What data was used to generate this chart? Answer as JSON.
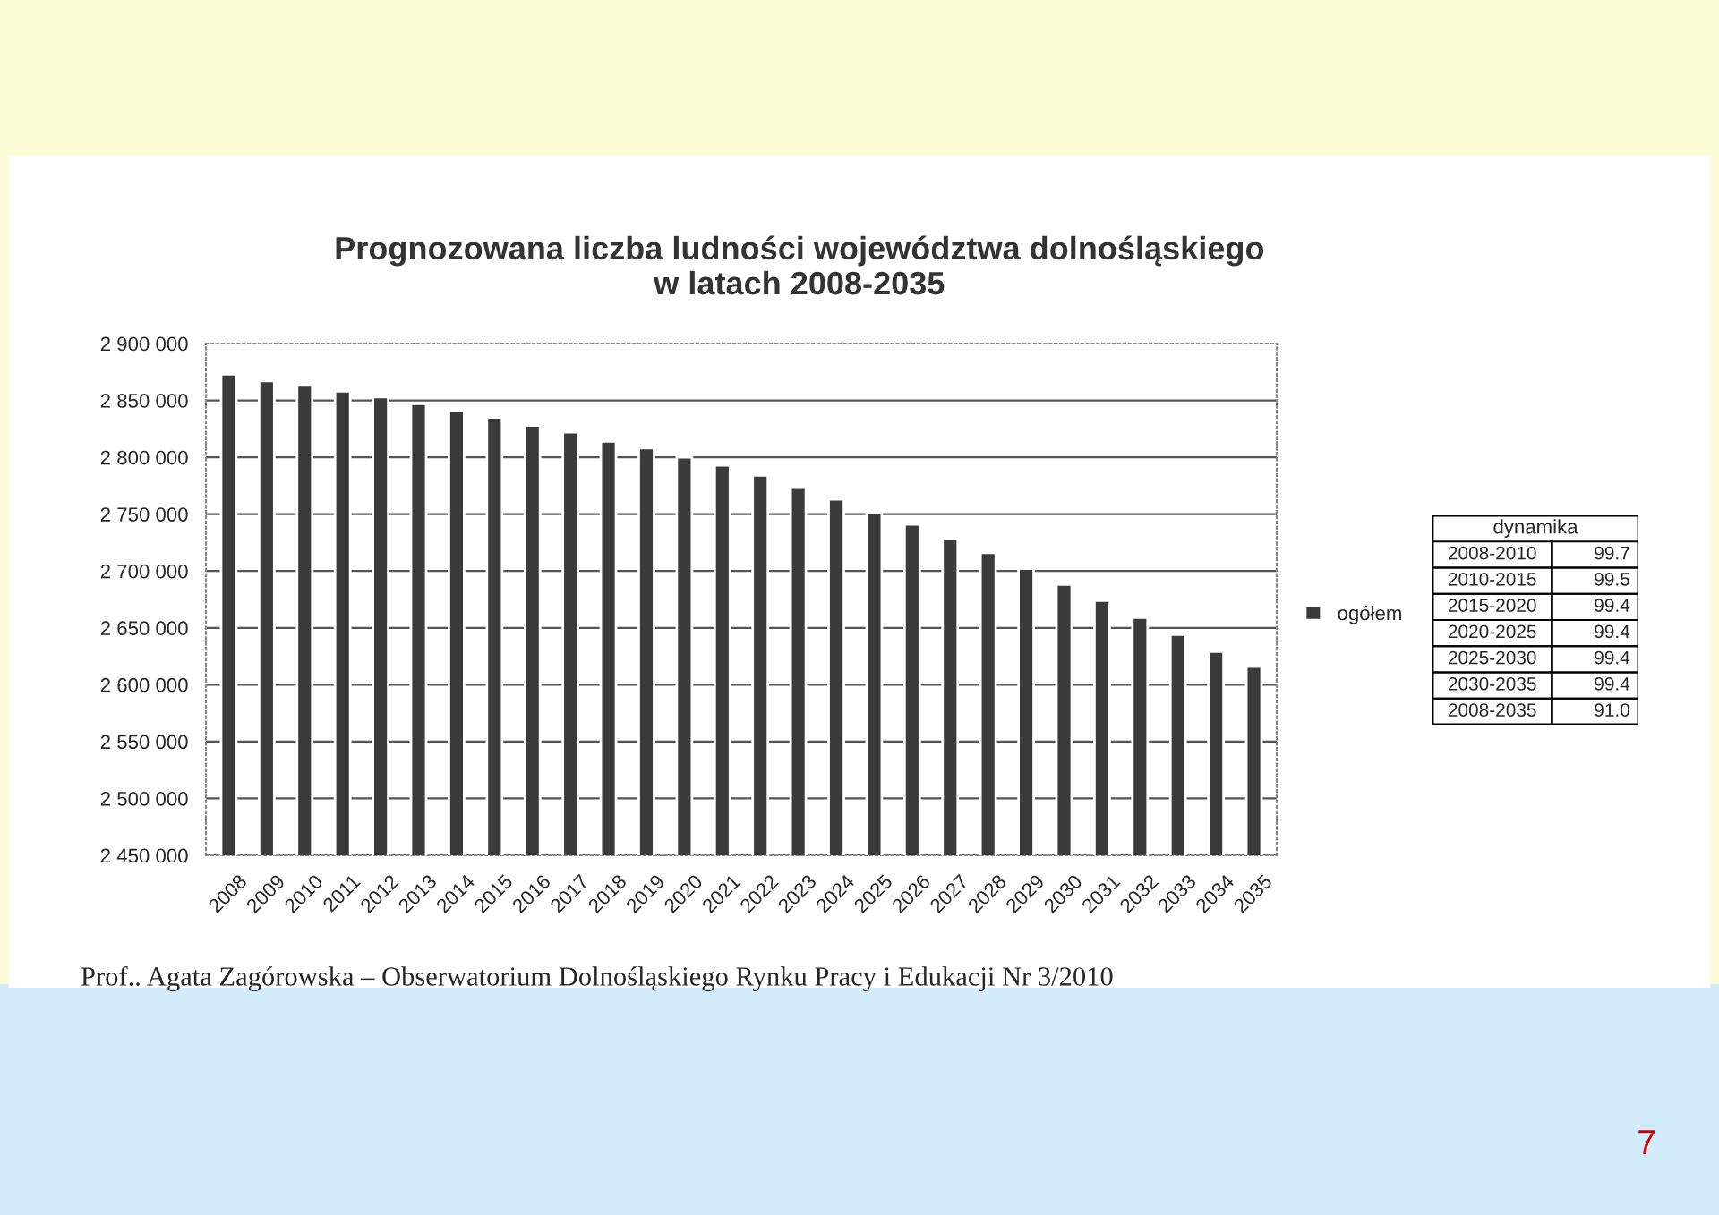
{
  "chart_data": {
    "type": "bar",
    "title": "Prognozowana liczba ludności województwa dolnośląskiego\nw latach 2008-2035",
    "categories": [
      "2008",
      "2009",
      "2010",
      "2011",
      "2012",
      "2013",
      "2014",
      "2015",
      "2016",
      "2017",
      "2018",
      "2019",
      "2020",
      "2021",
      "2022",
      "2023",
      "2024",
      "2025",
      "2026",
      "2027",
      "2028",
      "2029",
      "2030",
      "2031",
      "2032",
      "2033",
      "2034",
      "2035"
    ],
    "series": [
      {
        "name": "ogółem",
        "color": "#3a3a3a",
        "values": [
          2873000,
          2867000,
          2864000,
          2858000,
          2853000,
          2847000,
          2841000,
          2835000,
          2828000,
          2822000,
          2814000,
          2808000,
          2800000,
          2793000,
          2784000,
          2774000,
          2763000,
          2751000,
          2741000,
          2728000,
          2716000,
          2702000,
          2688000,
          2674000,
          2659000,
          2644000,
          2629000,
          2616000
        ]
      }
    ],
    "ylim": [
      2450000,
      2900000
    ],
    "yticks": [
      {
        "value": 2450000,
        "label": "2 450 000"
      },
      {
        "value": 2500000,
        "label": "2 500 000"
      },
      {
        "value": 2550000,
        "label": "2 550 000"
      },
      {
        "value": 2600000,
        "label": "2 600 000"
      },
      {
        "value": 2650000,
        "label": "2 650 000"
      },
      {
        "value": 2700000,
        "label": "2 700 000"
      },
      {
        "value": 2750000,
        "label": "2 750 000"
      },
      {
        "value": 2800000,
        "label": "2 800 000"
      },
      {
        "value": 2850000,
        "label": "2 850 000"
      },
      {
        "value": 2900000,
        "label": "2 900 000"
      }
    ],
    "grid": "y",
    "legend": "right",
    "annotations": [
      "Prof.. Agata Zagórowska – Obserwatorium Dolnośląskiego Rynku Pracy i Edukacji Nr 3/2010",
      "7",
      "dynamika",
      "2008-2010",
      "99.7",
      "2010-2015",
      "99.5",
      "2015-2020",
      "99.4",
      "2020-2025",
      "99.4",
      "2025-2030",
      "99.4",
      "2030-2035",
      "99.4",
      "2008-2035",
      "91.0"
    ]
  }
}
